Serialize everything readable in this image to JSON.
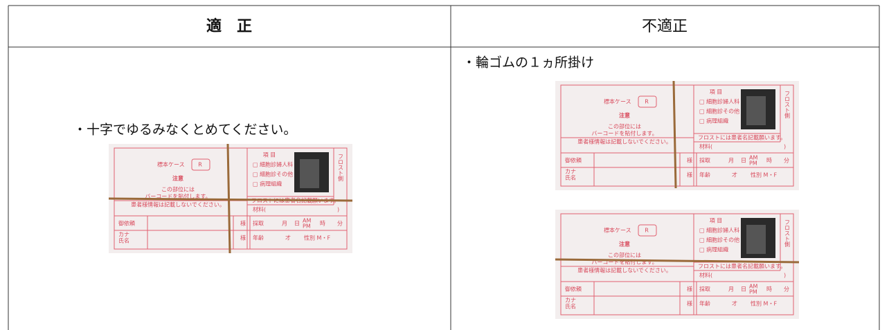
{
  "table": {
    "headers": [
      "適　正",
      "不適正"
    ],
    "proper": {
      "text": "・十字でゆるみなくとめてください。"
    },
    "improper": {
      "text": "・輪ゴムの１ヵ所掛け"
    }
  },
  "specimen_label": {
    "case": "標本ケース",
    "case_code": "R",
    "caution": "注意",
    "note_lines": [
      "この部位には",
      "バーコードを貼付します。"
    ],
    "patient_note": "患者様情報は記載しないでください。",
    "items_title": "項 目",
    "items": [
      "□ 細胞診婦人科",
      "□ 細胞診その他",
      "□ 病理組織"
    ],
    "frost_note": "フロストには患者名記載願います。",
    "frost_side": "フロスト側",
    "material_open": "材料(",
    "material_close": ")",
    "requester": "御依頼",
    "honorific": "様",
    "collection": "採取",
    "month": "月",
    "day": "日",
    "am": "AM",
    "pm": "PM",
    "hour": "時",
    "minute": "分",
    "kana": "カナ",
    "name": "氏名",
    "age": "年齢",
    "age_unit": "才",
    "sex": "性別 M・F"
  }
}
